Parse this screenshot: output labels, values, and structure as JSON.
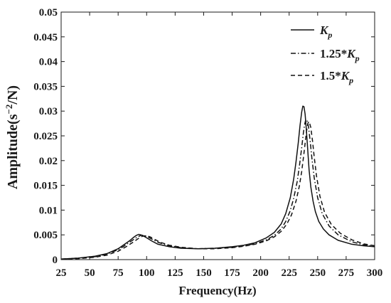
{
  "chart_data": {
    "type": "line",
    "xlabel": "Frequency(Hz)",
    "ylabel_main": "Amplitude(s",
    "ylabel_sup": "−2",
    "ylabel_tail": "/N)",
    "xlim": [
      25,
      300
    ],
    "ylim": [
      0,
      0.05
    ],
    "x_ticks": [
      25,
      50,
      75,
      100,
      125,
      150,
      175,
      200,
      225,
      250,
      275,
      300
    ],
    "y_ticks": [
      0,
      0.005,
      0.01,
      0.015,
      0.02,
      0.025,
      0.03,
      0.035,
      0.04,
      0.045,
      0.05
    ],
    "y_tick_labels": [
      "0",
      "0.005",
      "0.01",
      "0.015",
      "0.02",
      "0.025",
      "0.03",
      "0.035",
      "0.04",
      "0.045",
      "0.05"
    ],
    "grid": false,
    "legend_position": "top-right",
    "series": [
      {
        "legend_prefix": "",
        "legend_symbol": "K",
        "legend_sub": "p",
        "line_style": "solid",
        "color": "#111111",
        "x": [
          25,
          40,
          55,
          65,
          75,
          80,
          85,
          88,
          91,
          93,
          95,
          97,
          100,
          105,
          110,
          120,
          130,
          145,
          160,
          175,
          185,
          195,
          205,
          212,
          218,
          222,
          226,
          229,
          231,
          233,
          234.5,
          236,
          237,
          238,
          239,
          240,
          241,
          242.5,
          244,
          246,
          248,
          251,
          255,
          260,
          268,
          280,
          290,
          300
        ],
        "y": [
          0.0001,
          0.0003,
          0.0007,
          0.0012,
          0.0022,
          0.003,
          0.0038,
          0.0044,
          0.0049,
          0.0051,
          0.005,
          0.0048,
          0.0044,
          0.0037,
          0.0031,
          0.0026,
          0.0023,
          0.0022,
          0.0023,
          0.0026,
          0.0029,
          0.0034,
          0.0044,
          0.0055,
          0.0072,
          0.0093,
          0.0125,
          0.0163,
          0.0197,
          0.0236,
          0.027,
          0.0298,
          0.031,
          0.0309,
          0.0294,
          0.0265,
          0.0232,
          0.0181,
          0.0147,
          0.0118,
          0.0097,
          0.0077,
          0.0062,
          0.005,
          0.0039,
          0.0031,
          0.0028,
          0.0026
        ]
      },
      {
        "legend_prefix": "1.25*",
        "legend_symbol": "K",
        "legend_sub": "p",
        "line_style": "dashdot",
        "color": "#111111",
        "x": [
          25,
          40,
          55,
          65,
          75,
          80,
          85,
          90,
          93,
          95,
          97,
          100,
          105,
          110,
          120,
          130,
          145,
          160,
          175,
          185,
          195,
          205,
          212,
          218,
          222,
          226,
          229,
          232,
          234,
          236,
          237.5,
          238.5,
          239.5,
          240.5,
          242,
          243.5,
          245,
          247,
          250,
          254,
          260,
          268,
          280,
          290,
          300
        ],
        "y": [
          0.0001,
          0.0003,
          0.0006,
          0.0011,
          0.002,
          0.0027,
          0.0035,
          0.0043,
          0.0047,
          0.0049,
          0.0049,
          0.0047,
          0.0041,
          0.0035,
          0.0028,
          0.0024,
          0.0022,
          0.0023,
          0.0025,
          0.0028,
          0.0032,
          0.004,
          0.0049,
          0.0062,
          0.0077,
          0.0099,
          0.0124,
          0.0157,
          0.0189,
          0.0226,
          0.0256,
          0.0272,
          0.0282,
          0.0283,
          0.0268,
          0.0238,
          0.0204,
          0.0165,
          0.0125,
          0.0093,
          0.0068,
          0.005,
          0.0036,
          0.003,
          0.0027
        ]
      },
      {
        "legend_prefix": "1.5*",
        "legend_symbol": "K",
        "legend_sub": "p",
        "line_style": "dashed",
        "color": "#111111",
        "x": [
          25,
          40,
          55,
          65,
          75,
          82,
          88,
          93,
          96,
          98,
          100,
          103,
          107,
          112,
          120,
          130,
          145,
          160,
          175,
          185,
          195,
          205,
          212,
          218,
          223,
          227,
          231,
          234,
          236,
          238,
          239.5,
          240.5,
          241.5,
          242.5,
          244,
          245.5,
          247,
          249,
          252,
          256,
          262,
          270,
          280,
          290,
          300
        ],
        "y": [
          0.0001,
          0.0002,
          0.0005,
          0.0009,
          0.0017,
          0.0026,
          0.0035,
          0.0043,
          0.0047,
          0.0048,
          0.0048,
          0.0046,
          0.0041,
          0.0035,
          0.0029,
          0.0025,
          0.0022,
          0.0022,
          0.0024,
          0.0027,
          0.0031,
          0.0038,
          0.0046,
          0.0057,
          0.0072,
          0.009,
          0.0118,
          0.0149,
          0.0178,
          0.0215,
          0.0245,
          0.0263,
          0.0276,
          0.0279,
          0.0267,
          0.024,
          0.0207,
          0.0169,
          0.0128,
          0.0096,
          0.0071,
          0.0053,
          0.004,
          0.0032,
          0.0028
        ]
      }
    ]
  }
}
